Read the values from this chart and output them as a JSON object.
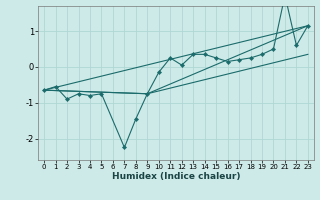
{
  "xlabel": "Humidex (Indice chaleur)",
  "background_color": "#ceeae8",
  "grid_color": "#afd8d4",
  "line_color": "#1a6b6b",
  "xlim": [
    -0.5,
    23.5
  ],
  "ylim": [
    -2.6,
    1.7
  ],
  "yticks": [
    -2,
    -1,
    0,
    1
  ],
  "xticks": [
    0,
    1,
    2,
    3,
    4,
    5,
    6,
    7,
    8,
    9,
    10,
    11,
    12,
    13,
    14,
    15,
    16,
    17,
    18,
    19,
    20,
    21,
    22,
    23
  ],
  "series_main": {
    "x": [
      0,
      1,
      2,
      3,
      4,
      5,
      7,
      8,
      9,
      10,
      11,
      12,
      13,
      14,
      15,
      16,
      17,
      18,
      19,
      20,
      21,
      22,
      23
    ],
    "y": [
      -0.65,
      -0.55,
      -0.9,
      -0.75,
      -0.8,
      -0.75,
      -2.25,
      -1.45,
      -0.75,
      -0.15,
      0.25,
      0.05,
      0.35,
      0.35,
      0.25,
      0.15,
      0.2,
      0.25,
      0.35,
      0.5,
      2.0,
      0.6,
      1.15
    ]
  },
  "trend_lines": [
    {
      "x": [
        0,
        23
      ],
      "y": [
        -0.65,
        1.15
      ]
    },
    {
      "x": [
        0,
        9,
        23
      ],
      "y": [
        -0.65,
        -0.75,
        0.35
      ]
    },
    {
      "x": [
        0,
        9,
        23
      ],
      "y": [
        -0.65,
        -0.75,
        1.15
      ]
    }
  ],
  "xlabel_fontsize": 6.5,
  "xlabel_fontweight": "bold",
  "xlabel_color": "#1a4444",
  "ytick_fontsize": 6.0,
  "xtick_fontsize": 5.0
}
